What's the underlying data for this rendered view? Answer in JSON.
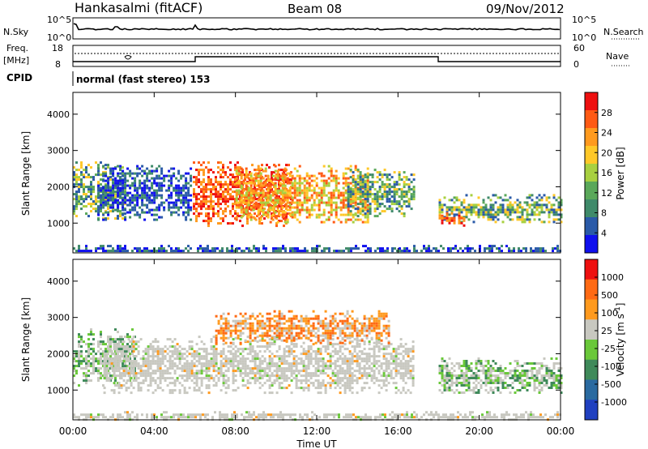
{
  "header": {
    "station": "Hankasalmi (fitACF)",
    "beam": "Beam 08",
    "date": "09/Nov/2012"
  },
  "noise_panel": {
    "left_label": "N.Sky",
    "right_label": "N.Search",
    "left_ticks": [
      "10^5",
      "10^0"
    ],
    "right_ticks": [
      "10^5",
      "10^0"
    ]
  },
  "freq_panel": {
    "left_label_1": "Freq.",
    "left_label_2": "[MHz]",
    "right_label": "Nave",
    "left_ticks": [
      "18",
      "8"
    ],
    "right_ticks": [
      "60",
      "0"
    ]
  },
  "cpid": {
    "label": "CPID",
    "value": "normal (fast stereo) 153"
  },
  "chart_data": [
    {
      "type": "heatmap",
      "panel": "power",
      "ylabel": "Slant Range [km]",
      "yticks": [
        "4000",
        "3000",
        "2000",
        "1000"
      ],
      "ylim": [
        180,
        4600
      ],
      "xlim_hours": [
        0,
        24
      ],
      "colorbar": {
        "label": "Power [dB]",
        "ticks": [
          "28",
          "24",
          "20",
          "16",
          "12",
          "8",
          "4"
        ],
        "colors": [
          "#1010ee",
          "#2a5aa8",
          "#3f8a6a",
          "#5aa85a",
          "#a8d040",
          "#ffc828",
          "#ff9a1e",
          "#ff5a14",
          "#ee1010"
        ]
      },
      "echo_regions": [
        {
          "x0": 0.0,
          "x1": 2.6,
          "r0": 1100,
          "r1": 2700,
          "level": "mixed-green"
        },
        {
          "x0": 1.2,
          "x1": 5.8,
          "r0": 1100,
          "r1": 2600,
          "level": "low-blue"
        },
        {
          "x0": 5.9,
          "x1": 10.8,
          "r0": 950,
          "r1": 2700,
          "level": "high-red"
        },
        {
          "x0": 8.0,
          "x1": 14.5,
          "r0": 1000,
          "r1": 2600,
          "level": "mid-orange"
        },
        {
          "x0": 13.5,
          "x1": 16.8,
          "r0": 1200,
          "r1": 2500,
          "level": "mixed-green"
        },
        {
          "x0": 18.0,
          "x1": 24.0,
          "r0": 1000,
          "r1": 1800,
          "level": "mixed-green"
        },
        {
          "x0": 18.0,
          "x1": 19.2,
          "r0": 950,
          "r1": 1300,
          "level": "high-red"
        },
        {
          "x0": 0.0,
          "x1": 24.0,
          "r0": 200,
          "r1": 400,
          "level": "low-blue"
        }
      ]
    },
    {
      "type": "heatmap",
      "panel": "velocity",
      "ylabel": "Slant Range [km]",
      "yticks": [
        "4000",
        "3000",
        "2000",
        "1000"
      ],
      "ylim": [
        180,
        4600
      ],
      "xlim_hours": [
        0,
        24
      ],
      "colorbar": {
        "label": "Velocity [m s^-1]",
        "ticks": [
          "1000",
          "500",
          "100",
          "25",
          "-25",
          "-100",
          "-500",
          "-1000"
        ],
        "colors": [
          "#2040c0",
          "#2a6aa0",
          "#3f8a5a",
          "#6ac83a",
          "#c8c8c0",
          "#ff9a1e",
          "#ff6a14",
          "#ee1010"
        ]
      },
      "echo_regions": [
        {
          "x0": 0.0,
          "x1": 3.0,
          "r0": 1100,
          "r1": 2700,
          "level": "mixed-green"
        },
        {
          "x0": 1.5,
          "x1": 16.8,
          "r0": 900,
          "r1": 2500,
          "level": "grey"
        },
        {
          "x0": 7.0,
          "x1": 15.5,
          "r0": 2300,
          "r1": 3200,
          "level": "orange"
        },
        {
          "x0": 18.0,
          "x1": 24.0,
          "r0": 900,
          "r1": 1900,
          "level": "grey-green"
        },
        {
          "x0": 0.0,
          "x1": 24.0,
          "r0": 200,
          "r1": 420,
          "level": "grey"
        }
      ]
    }
  ],
  "xaxis": {
    "ticks": [
      "00:00",
      "04:00",
      "08:00",
      "12:00",
      "16:00",
      "20:00",
      "00:00"
    ],
    "label": "Time UT"
  }
}
